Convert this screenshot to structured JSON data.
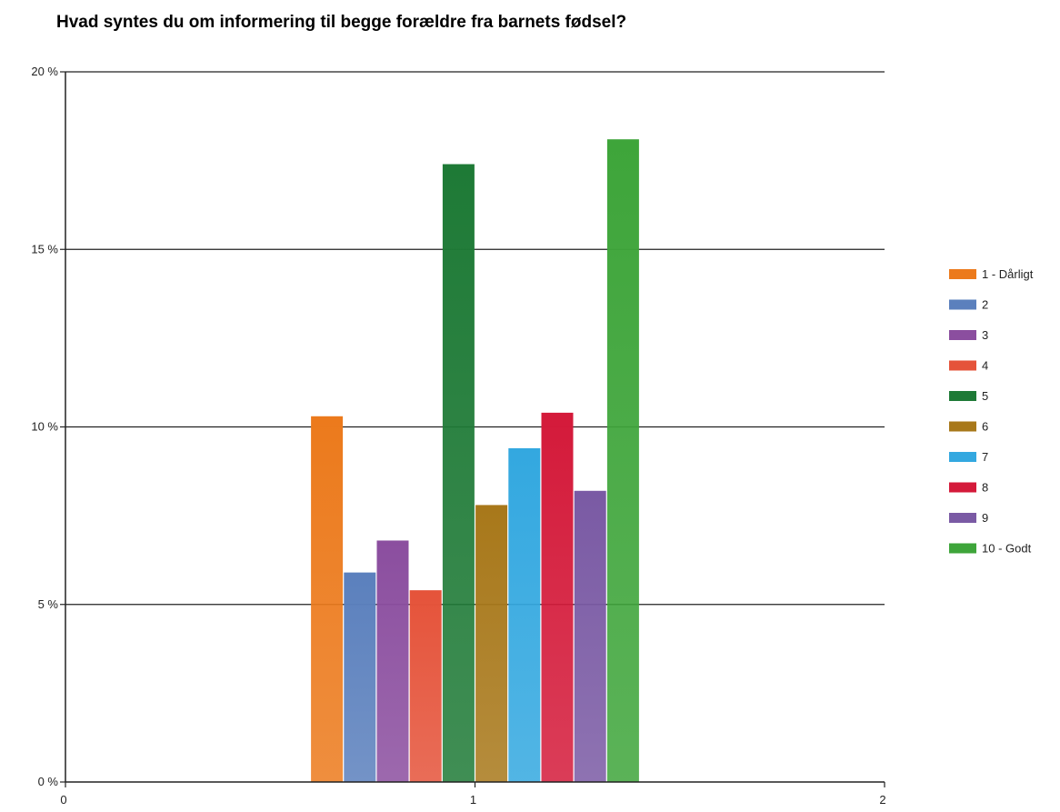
{
  "chart_data": {
    "type": "bar",
    "title": "Hvad syntes du om informering til begge forældre fra barnets fødsel?",
    "xlabel": "",
    "ylabel": "",
    "x_ticks": [
      "0",
      "1",
      "2"
    ],
    "xlim": [
      0,
      2
    ],
    "y_ticks": [
      "0 %",
      "5 %",
      "10 %",
      "15 %",
      "20 %"
    ],
    "ylim": [
      0,
      20
    ],
    "y_unit": "%",
    "grid": "horizontal",
    "legend_position": "right",
    "categories": [
      "1"
    ],
    "series": [
      {
        "name": "1 - Dårligt",
        "color": "#ec7a1c",
        "values": [
          10.3
        ]
      },
      {
        "name": "2",
        "color": "#5b80bd",
        "values": [
          5.9
        ]
      },
      {
        "name": "3",
        "color": "#8b4e9f",
        "values": [
          6.8
        ]
      },
      {
        "name": "4",
        "color": "#e5533a",
        "values": [
          5.4
        ]
      },
      {
        "name": "5",
        "color": "#1e7a36",
        "values": [
          17.4
        ]
      },
      {
        "name": "6",
        "color": "#a8781a",
        "values": [
          7.8
        ]
      },
      {
        "name": "7",
        "color": "#33a8e0",
        "values": [
          9.4
        ]
      },
      {
        "name": "8",
        "color": "#d41a3a",
        "values": [
          10.4
        ]
      },
      {
        "name": "9",
        "color": "#7a5aa4",
        "values": [
          8.2
        ]
      },
      {
        "name": "10 - Godt",
        "color": "#3ea53a",
        "values": [
          18.1
        ]
      }
    ]
  }
}
